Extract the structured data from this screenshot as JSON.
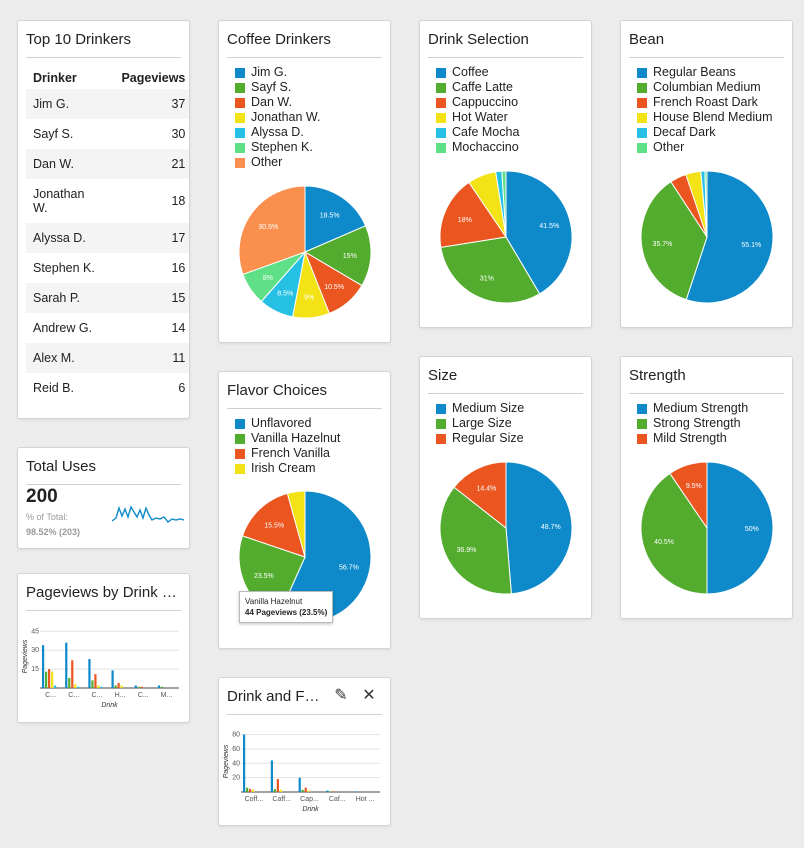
{
  "colors": [
    "#0e8acb",
    "#53ac2e",
    "#ea5520",
    "#f2e216",
    "#27c0e5",
    "#5fdf86",
    "#fa8f4e",
    "#66c95f"
  ],
  "top10": {
    "title": "Top 10 Drinkers",
    "col_drinker": "Drinker",
    "col_pageviews": "Pageviews",
    "rows": [
      {
        "name": "Jim G.",
        "views": "37"
      },
      {
        "name": "Sayf S.",
        "views": "30"
      },
      {
        "name": "Dan W.",
        "views": "21"
      },
      {
        "name": "Jonathan W.",
        "views": "18"
      },
      {
        "name": "Alyssa D.",
        "views": "17"
      },
      {
        "name": "Stephen K.",
        "views": "16"
      },
      {
        "name": "Sarah P.",
        "views": "15"
      },
      {
        "name": "Andrew G.",
        "views": "14"
      },
      {
        "name": "Alex M.",
        "views": "11"
      },
      {
        "name": "Reid B.",
        "views": "6"
      }
    ]
  },
  "total_uses": {
    "title": "Total Uses",
    "value": "200",
    "pct_label": "% of Total:",
    "pct_value": "98.52% (203)"
  },
  "pageviews_by_drink_title": "Pageviews by Drink …",
  "drink_flavor_title": "Drink and F…",
  "tooltip": {
    "line1": "Vanilla Hazelnut",
    "line2": "44 Pageviews (23.5%)"
  },
  "chart_data": [
    {
      "type": "pie",
      "title": "Coffee Drinkers",
      "labels": [
        "Jim G.",
        "Sayf S.",
        "Dan W.",
        "Jonathan W.",
        "Alyssa D.",
        "Stephen K.",
        "Other"
      ],
      "values": [
        18.5,
        15,
        10.5,
        9,
        8.5,
        8,
        30.5
      ],
      "slice_labels": [
        "18.5%",
        "15%",
        "10.5%",
        "9%",
        "8.5%",
        "8%",
        "30.5%"
      ],
      "colors": [
        "#0e8acb",
        "#53ac2e",
        "#ea5520",
        "#f2e216",
        "#27c0e5",
        "#5fdf86",
        "#fa8f4e"
      ]
    },
    {
      "type": "pie",
      "title": "Drink Selection",
      "labels": [
        "Coffee",
        "Caffe Latte",
        "Cappuccino",
        "Hot Water",
        "Cafe Mocha",
        "Mochaccino"
      ],
      "values": [
        41.5,
        31,
        18,
        7,
        1.5,
        1
      ],
      "slice_labels": [
        "41.5%",
        "31%",
        "18%",
        "",
        "",
        ""
      ],
      "colors": [
        "#0e8acb",
        "#53ac2e",
        "#ea5520",
        "#f2e216",
        "#27c0e5",
        "#5fdf86"
      ]
    },
    {
      "type": "pie",
      "title": "Bean",
      "labels": [
        "Regular Beans",
        "Columbian Medium",
        "French Roast Dark",
        "House Blend Medium",
        "Decaf Dark",
        "Other"
      ],
      "values": [
        55.1,
        35.7,
        4,
        3.7,
        1,
        0.5
      ],
      "slice_labels": [
        "55.1%",
        "35.7%",
        "",
        "",
        "",
        ""
      ],
      "colors": [
        "#0e8acb",
        "#53ac2e",
        "#ea5520",
        "#f2e216",
        "#27c0e5",
        "#5fdf86"
      ]
    },
    {
      "type": "pie",
      "title": "Flavor Choices",
      "labels": [
        "Unflavored",
        "Vanilla Hazelnut",
        "French Vanilla",
        "Irish Cream"
      ],
      "values": [
        56.7,
        23.5,
        15.5,
        4.3
      ],
      "slice_labels": [
        "56.7%",
        "23.5%",
        "15.5%",
        ""
      ],
      "colors": [
        "#0e8acb",
        "#53ac2e",
        "#ea5520",
        "#f2e216"
      ]
    },
    {
      "type": "pie",
      "title": "Size",
      "labels": [
        "Medium Size",
        "Large Size",
        "Regular Size"
      ],
      "values": [
        48.7,
        36.9,
        14.4
      ],
      "slice_labels": [
        "48.7%",
        "36.9%",
        "14.4%"
      ],
      "colors": [
        "#0e8acb",
        "#53ac2e",
        "#ea5520"
      ]
    },
    {
      "type": "pie",
      "title": "Strength",
      "labels": [
        "Medium Strength",
        "Strong Strength",
        "Mild Strength"
      ],
      "values": [
        50,
        40.5,
        9.5
      ],
      "slice_labels": [
        "50%",
        "40.5%",
        "9.5%"
      ],
      "colors": [
        "#0e8acb",
        "#53ac2e",
        "#ea5520"
      ]
    },
    {
      "type": "bar",
      "title": "Pageviews by Drink …",
      "xlabel": "Drink",
      "ylabel": "Pageviews",
      "yticks": [
        "15",
        "30",
        "45"
      ],
      "ylim": [
        0,
        50
      ],
      "categories": [
        "C...",
        "C...",
        "C...",
        "H...",
        "C...",
        "M..."
      ],
      "series": [
        {
          "values": [
            34,
            36,
            23,
            14,
            2,
            2
          ]
        },
        {
          "values": [
            13,
            8,
            6,
            2,
            1,
            1
          ]
        },
        {
          "values": [
            15,
            22,
            11,
            4,
            1,
            0
          ]
        },
        {
          "values": [
            13,
            3,
            2,
            2,
            0,
            0
          ]
        },
        {
          "values": [
            2,
            1,
            1,
            0,
            0,
            0
          ]
        }
      ]
    },
    {
      "type": "bar",
      "title": "Drink and F…",
      "xlabel": "Drink",
      "ylabel": "Pageviews",
      "yticks": [
        "20",
        "40",
        "60",
        "80"
      ],
      "ylim": [
        0,
        85
      ],
      "categories": [
        "Coff...",
        "Caff...",
        "Cap...",
        "Caf...",
        "Hot ..."
      ],
      "series": [
        {
          "values": [
            80,
            44,
            20,
            2,
            1
          ]
        },
        {
          "values": [
            6,
            4,
            3,
            1,
            0
          ]
        },
        {
          "values": [
            4,
            18,
            6,
            1,
            0
          ]
        },
        {
          "values": [
            3,
            3,
            2,
            0,
            0
          ]
        }
      ]
    }
  ]
}
